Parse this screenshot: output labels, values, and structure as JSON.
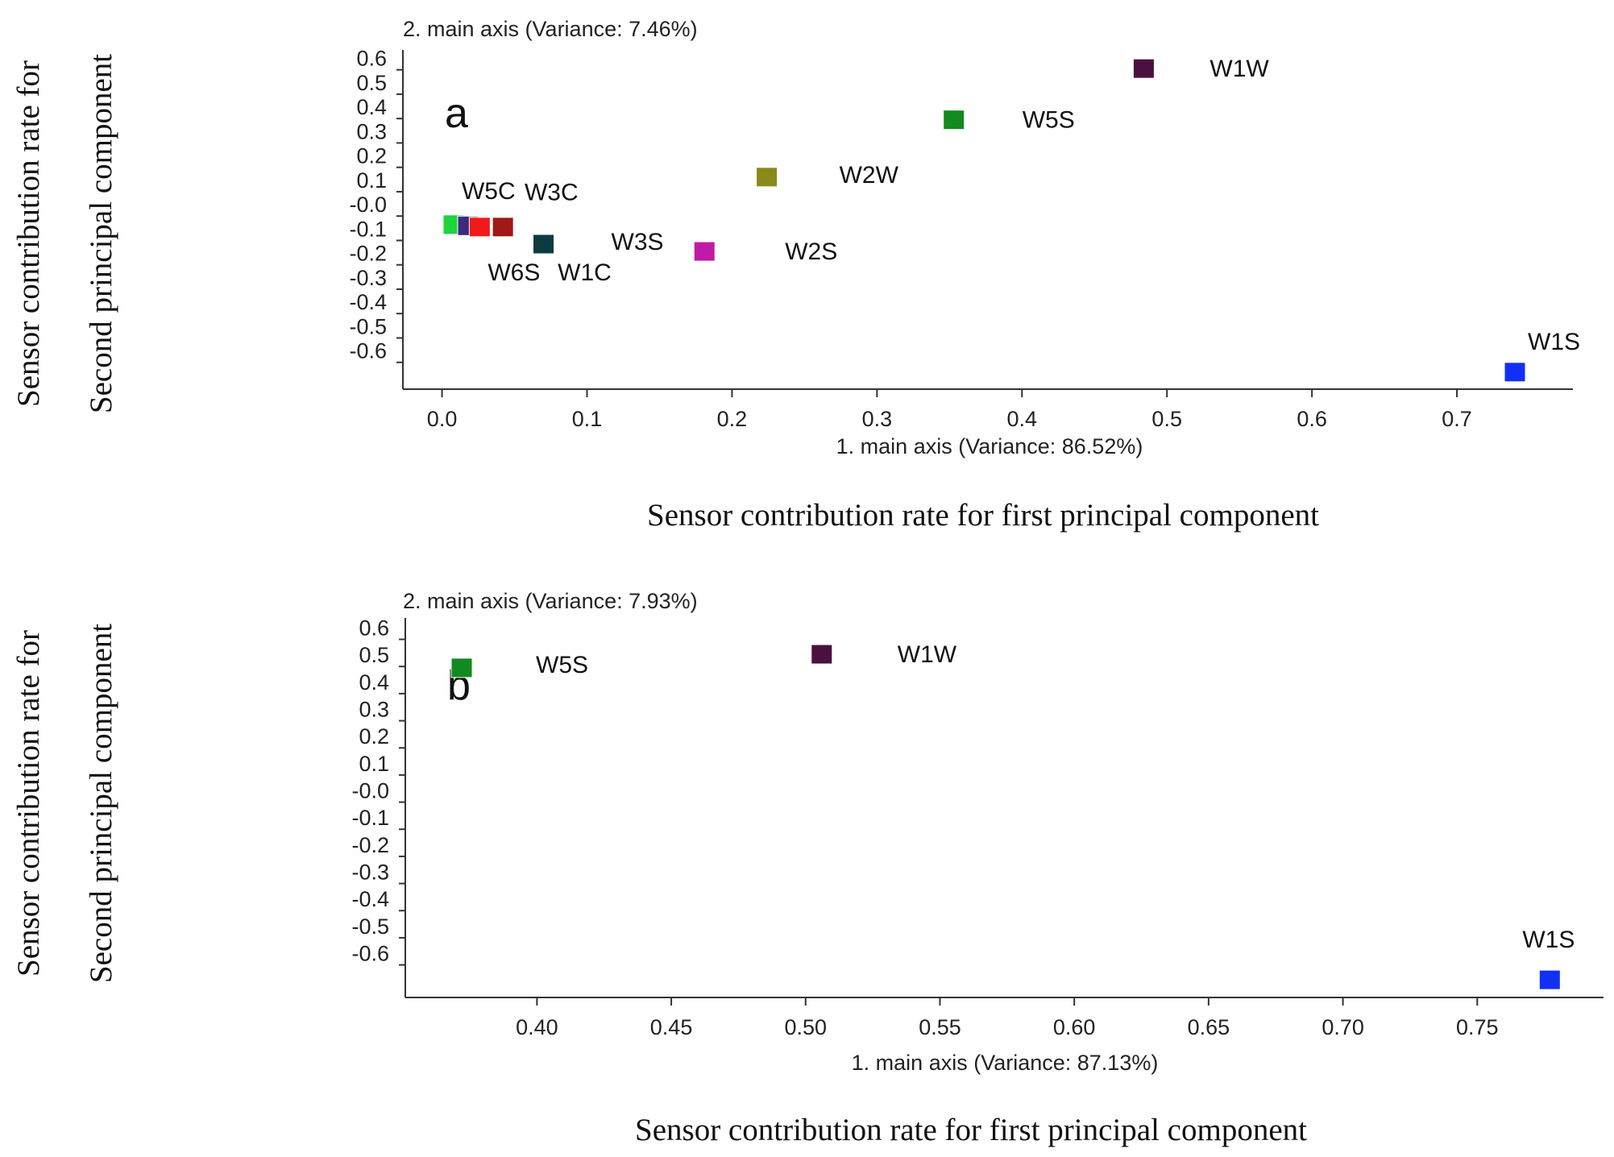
{
  "chart_data": [
    {
      "type": "scatter",
      "panel_label": "a",
      "title": "",
      "xlabel": "1. main axis (Variance: 86.52%)",
      "ylabel": "2. main axis (Variance: 7.46%)",
      "outer_xlabel": "Sensor contribution rate for first principal component",
      "outer_ylabel_line1": "Sensor contribution rate for",
      "outer_ylabel_line2": "Second principal component",
      "xlim": [
        -0.027,
        0.78
      ],
      "ylim": [
        -0.71,
        0.655
      ],
      "xticks": [
        "0.0",
        "0.1",
        "0.2",
        "0.3",
        "0.4",
        "0.5",
        "0.6",
        "0.7"
      ],
      "yticks": [
        "0.6",
        "0.5",
        "0.4",
        "0.3",
        "0.2",
        "0.1",
        "-0.0",
        "-0.1",
        "-0.2",
        "-0.3",
        "-0.4",
        "-0.5",
        "-0.6"
      ],
      "points": [
        {
          "label": "W1W",
          "x": 0.484,
          "y": 0.605,
          "color": "#4b1040"
        },
        {
          "label": "W5S",
          "x": 0.353,
          "y": 0.395,
          "color": "#138a20"
        },
        {
          "label": "W2W",
          "x": 0.224,
          "y": 0.16,
          "color": "#8a8a18"
        },
        {
          "label": "W1S",
          "x": 0.74,
          "y": -0.64,
          "color": "#1230f5"
        },
        {
          "label": "W2S",
          "x": 0.181,
          "y": -0.145,
          "color": "#c21aa8"
        },
        {
          "label": "W3S",
          "x": 0.07,
          "y": -0.115,
          "color": "#0c3a40"
        },
        {
          "label": "W5C",
          "x": 0.008,
          "y": -0.035,
          "color": "#1ed43a"
        },
        {
          "label": "W3C",
          "x": 0.018,
          "y": -0.04,
          "color": "#3a2a80"
        },
        {
          "label": "W6S",
          "x": 0.026,
          "y": -0.045,
          "color": "#f01a1a"
        },
        {
          "label": "W1C",
          "x": 0.042,
          "y": -0.045,
          "color": "#a01818"
        }
      ]
    },
    {
      "type": "scatter",
      "panel_label": "b",
      "title": "",
      "xlabel": "1. main axis (Variance: 87.13%)",
      "ylabel": "2. main axis (Variance: 7.93%)",
      "outer_xlabel": "Sensor contribution rate for first principal component",
      "outer_ylabel_line1": "Sensor contribution rate for",
      "outer_ylabel_line2": "Second principal component",
      "xlim": [
        0.351,
        0.797
      ],
      "ylim": [
        -0.72,
        0.655
      ],
      "xticks": [
        "0.40",
        "0.45",
        "0.50",
        "0.55",
        "0.60",
        "0.65",
        "0.70",
        "0.75"
      ],
      "yticks": [
        "0.6",
        "0.5",
        "0.4",
        "0.3",
        "0.2",
        "0.1",
        "-0.0",
        "-0.1",
        "-0.2",
        "-0.3",
        "-0.4",
        "-0.5",
        "-0.6"
      ],
      "points": [
        {
          "label": "W5S",
          "x": 0.372,
          "y": 0.495,
          "color": "#138a20"
        },
        {
          "label": "W1W",
          "x": 0.506,
          "y": 0.545,
          "color": "#4b1040"
        },
        {
          "label": "W1S",
          "x": 0.777,
          "y": -0.655,
          "color": "#1230f5"
        }
      ]
    }
  ]
}
